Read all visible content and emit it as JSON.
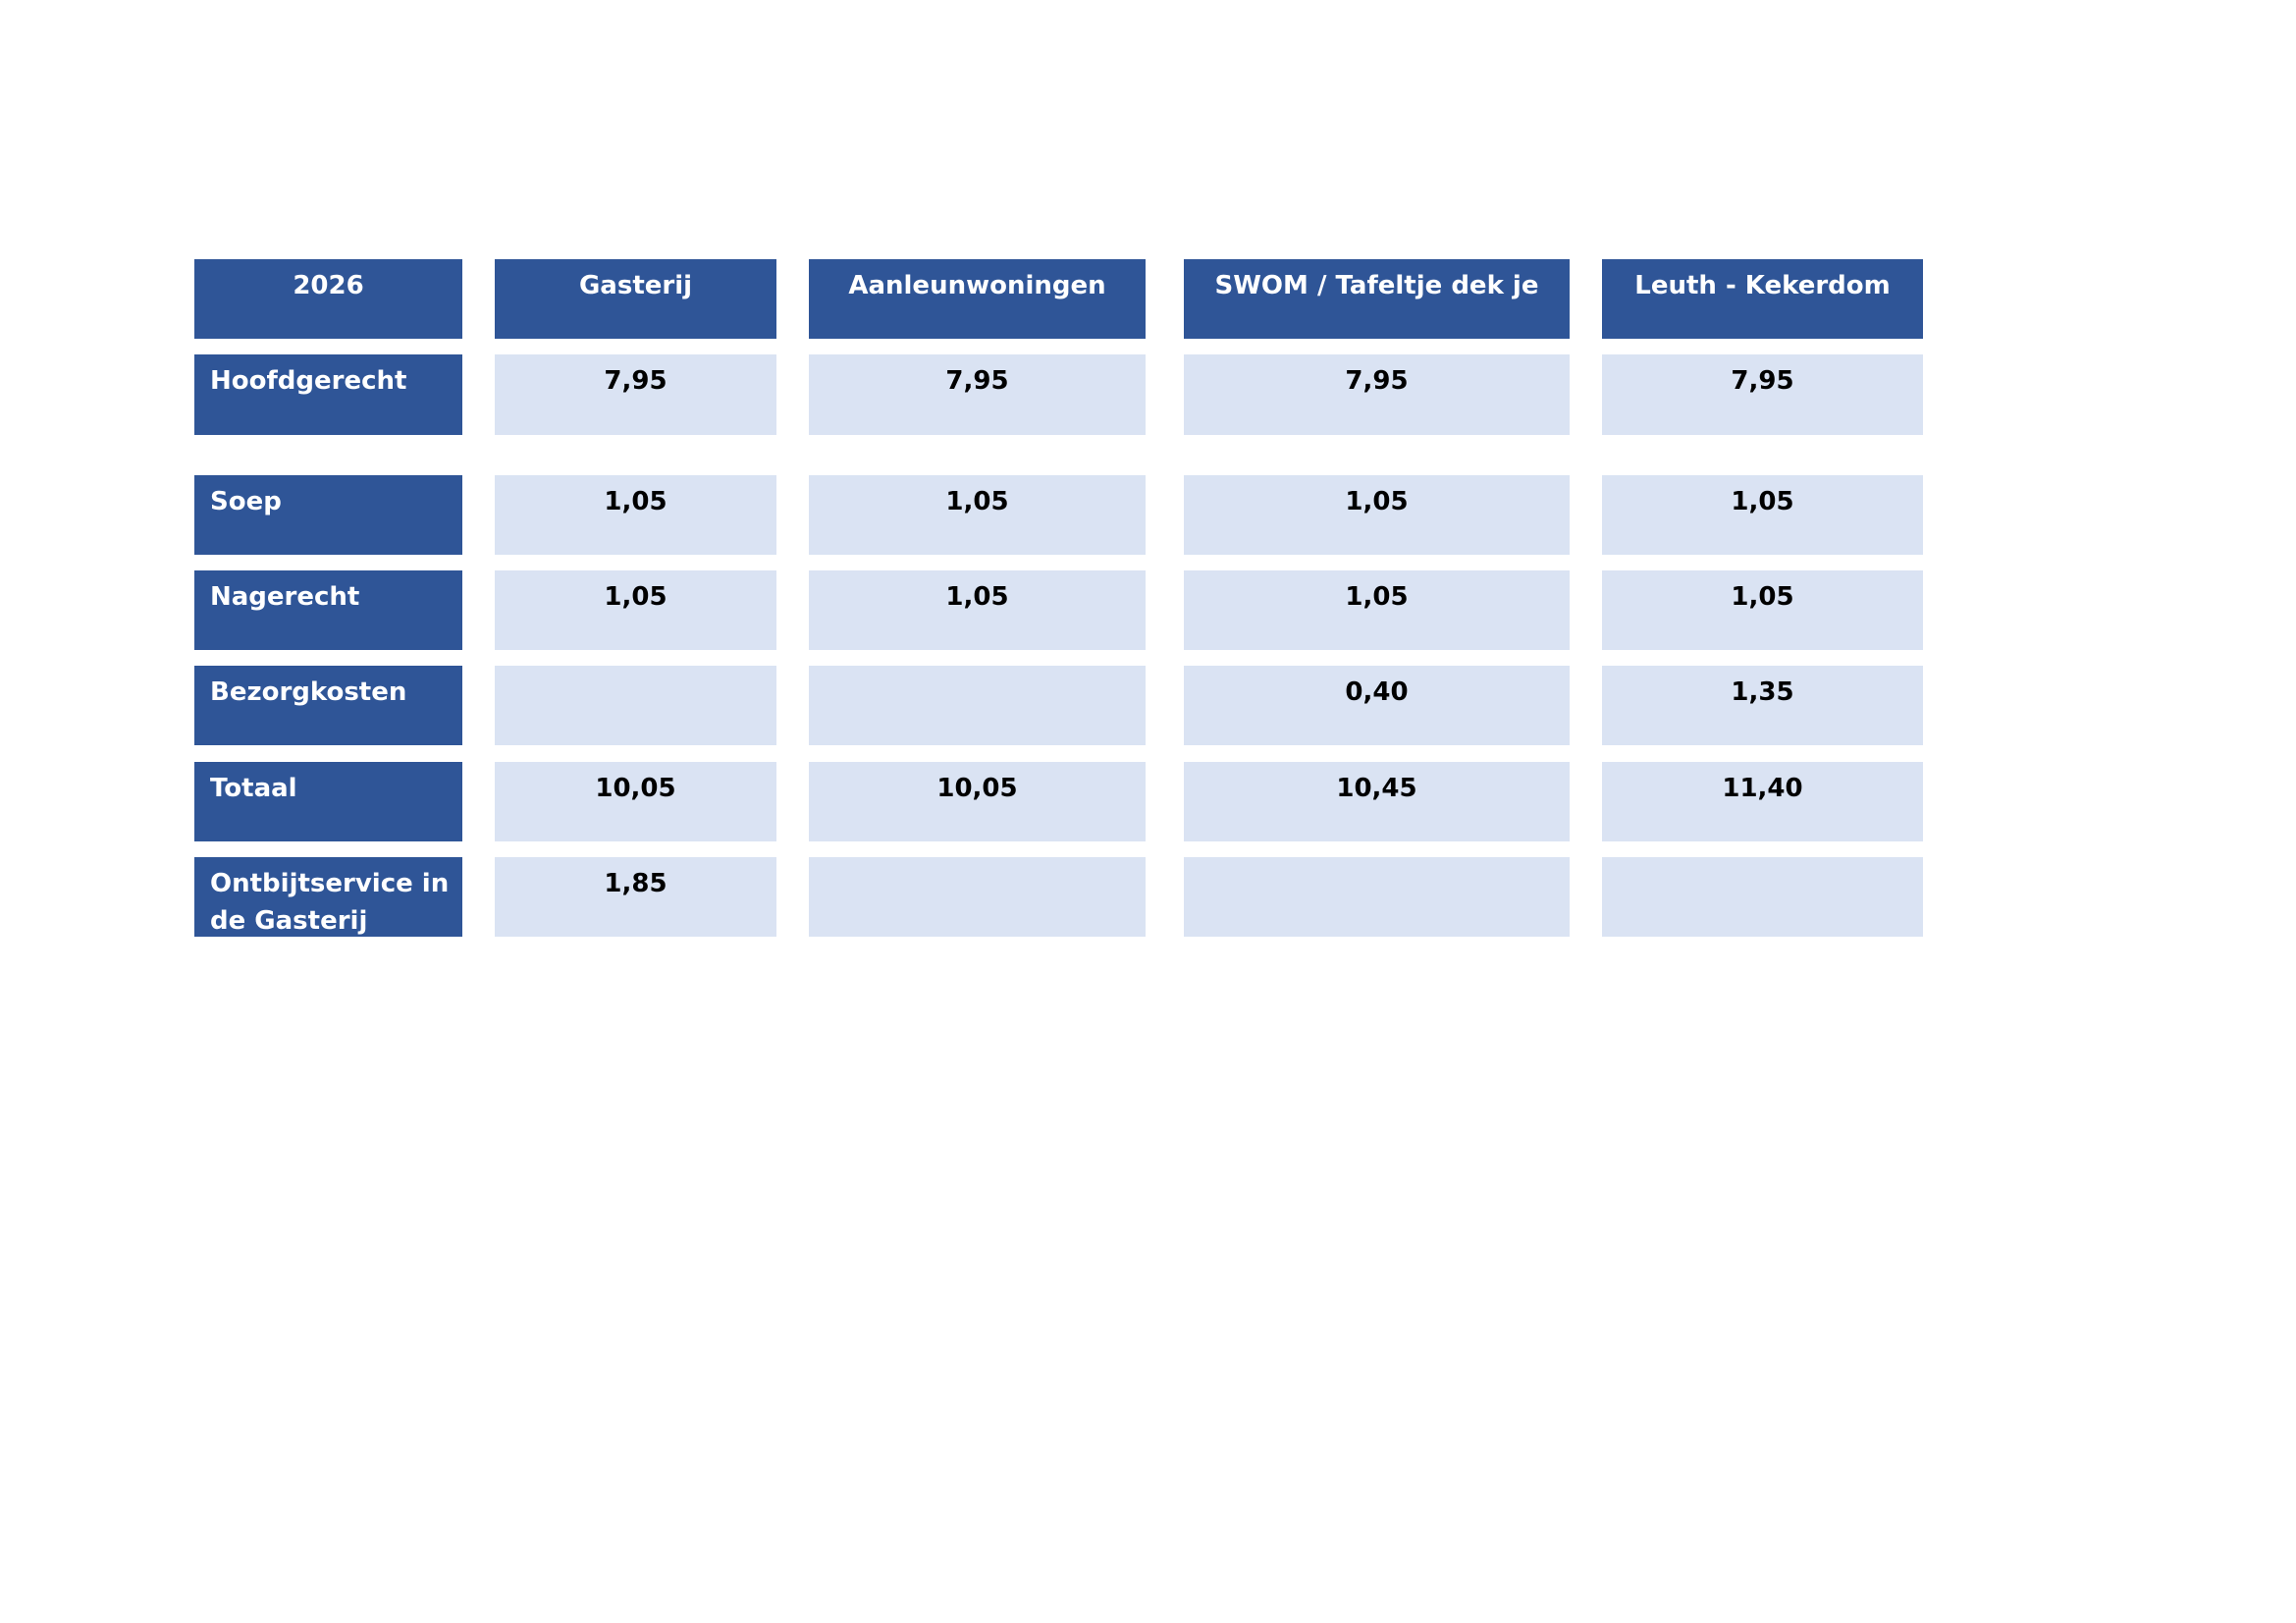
{
  "colors": {
    "header": "#2F5597",
    "cell": "#DAE3F3"
  },
  "table": {
    "corner": "2026",
    "columns": [
      "Gasterij",
      "Aanleunwoningen",
      "SWOM / Tafeltje dek je",
      "Leuth - Kekerdom"
    ],
    "rows": [
      {
        "label": "Hoofdgerecht",
        "values": [
          "7,95",
          "7,95",
          "7,95",
          "7,95"
        ]
      },
      {
        "label": "Soep",
        "values": [
          "1,05",
          "1,05",
          "1,05",
          "1,05"
        ]
      },
      {
        "label": "Nagerecht",
        "values": [
          "1,05",
          "1,05",
          "1,05",
          "1,05"
        ]
      },
      {
        "label": "Bezorgkosten",
        "values": [
          "",
          "",
          "0,40",
          "1,35"
        ]
      },
      {
        "label": "Totaal",
        "values": [
          "10,05",
          "10,05",
          "10,45",
          "11,40"
        ]
      },
      {
        "label": "Ontbijtservice in de Gasterij",
        "values": [
          "1,85",
          "",
          "",
          ""
        ]
      }
    ]
  }
}
